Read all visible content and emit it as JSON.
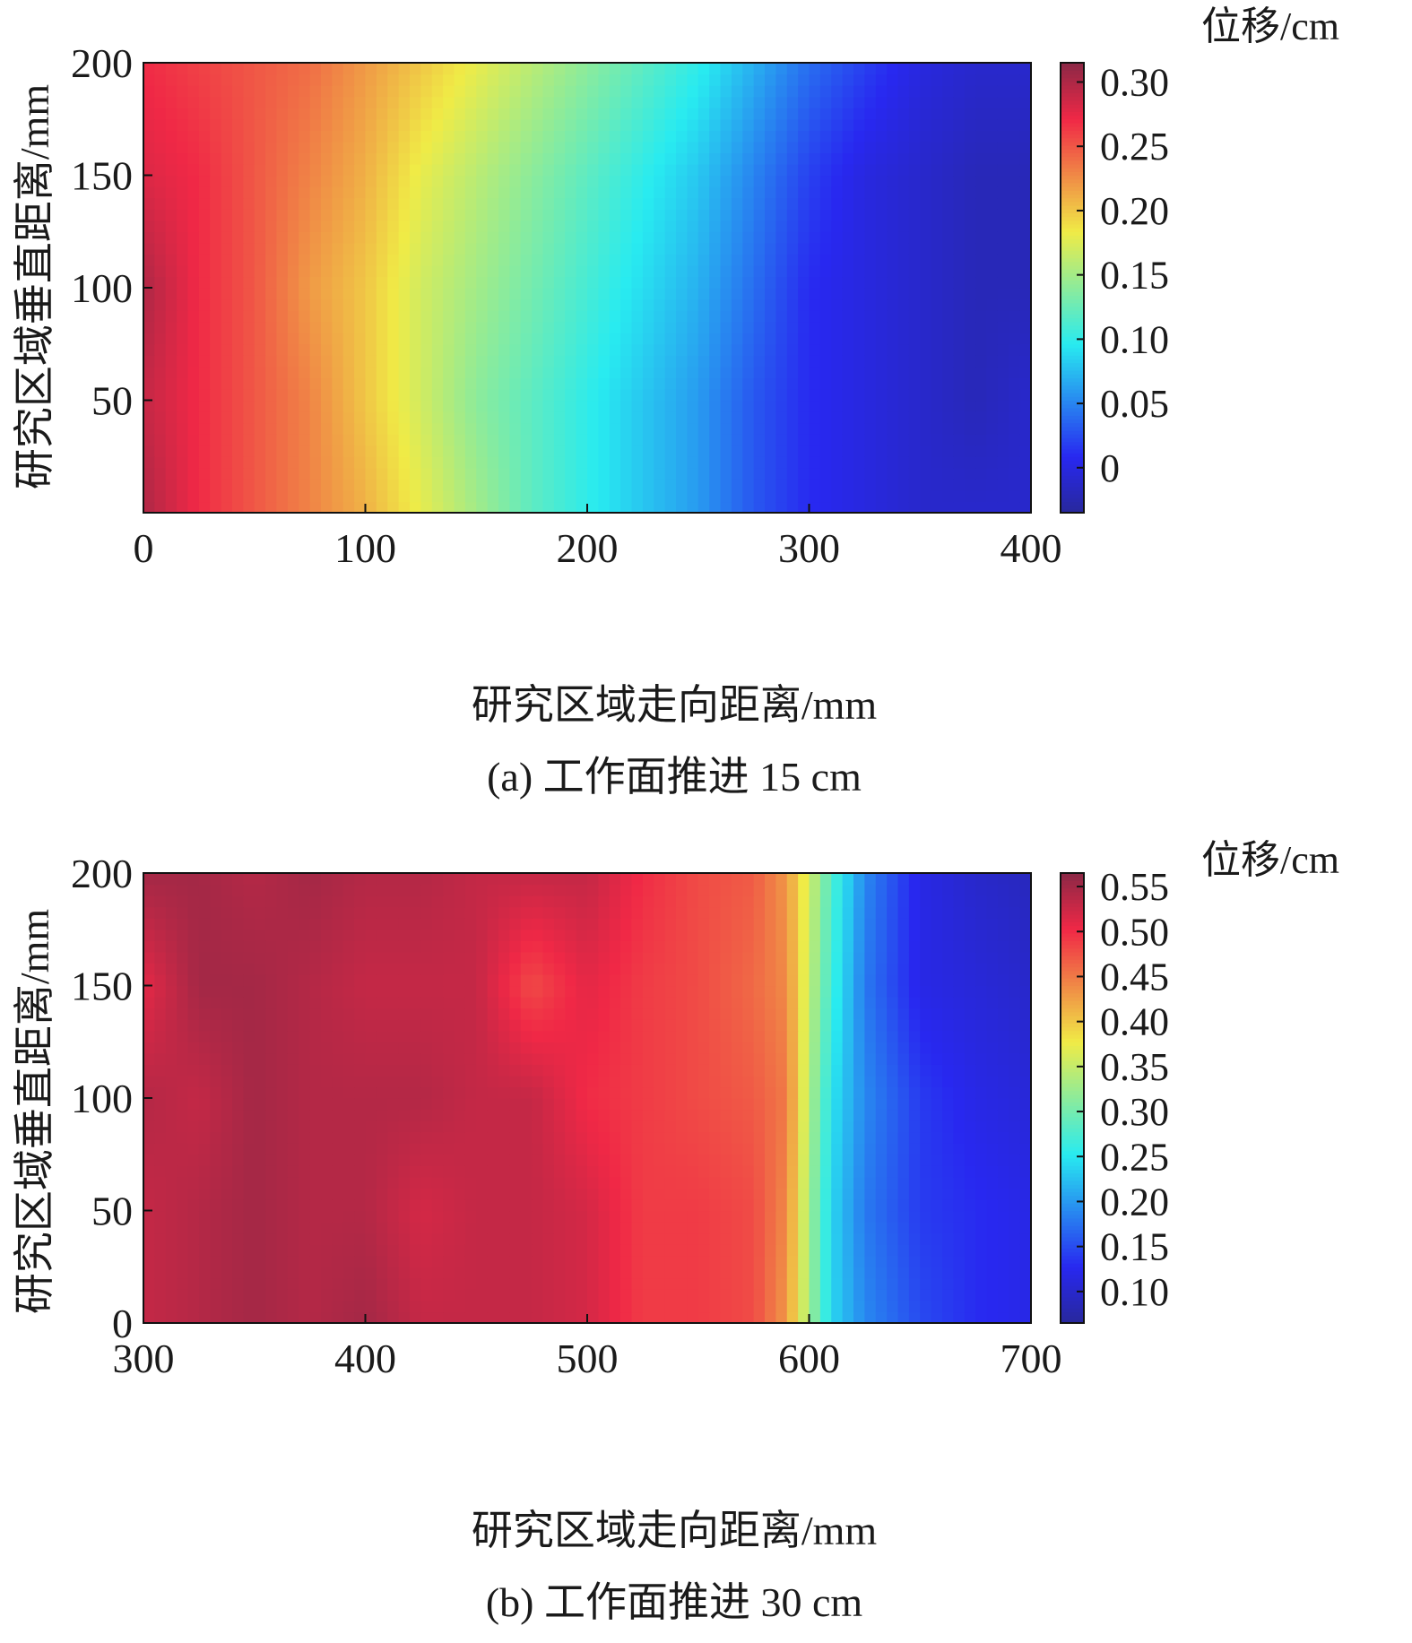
{
  "chart_data": [
    {
      "type": "heatmap",
      "caption": "(a) 工作面推进 15 cm",
      "xlabel": "研究区域走向距离/mm",
      "ylabel": "研究区域垂直距离/mm",
      "x_ticks": [
        "0",
        "100",
        "200",
        "300",
        "400"
      ],
      "y_ticks": [
        "50",
        "100",
        "150",
        "200"
      ],
      "xlim": [
        0,
        400
      ],
      "ylim": [
        0,
        200
      ],
      "colorbar": {
        "title": "位移/cm",
        "ticks": [
          "0",
          "0.05",
          "0.10",
          "0.15",
          "0.20",
          "0.25",
          "0.30"
        ],
        "tick_values": [
          0,
          0.05,
          0.1,
          0.15,
          0.2,
          0.25,
          0.3
        ],
        "range": [
          -0.035,
          0.315
        ]
      },
      "colormap": "jet",
      "x": [
        0,
        25,
        50,
        75,
        100,
        125,
        150,
        175,
        200,
        225,
        250,
        275,
        300,
        325,
        350,
        375,
        400
      ],
      "y": [
        0,
        50,
        100,
        150,
        200
      ],
      "z": [
        [
          0.3,
          0.27,
          0.25,
          0.23,
          0.21,
          0.18,
          0.15,
          0.12,
          0.1,
          0.08,
          0.06,
          0.03,
          0.01,
          0.0,
          -0.01,
          -0.01,
          -0.01
        ],
        [
          0.29,
          0.27,
          0.25,
          0.23,
          0.2,
          0.17,
          0.14,
          0.12,
          0.1,
          0.08,
          0.06,
          0.03,
          0.01,
          0.0,
          -0.01,
          -0.02,
          -0.01
        ],
        [
          0.3,
          0.27,
          0.25,
          0.22,
          0.2,
          0.17,
          0.15,
          0.13,
          0.11,
          0.09,
          0.07,
          0.04,
          0.01,
          0.0,
          -0.01,
          -0.02,
          -0.02
        ],
        [
          0.28,
          0.27,
          0.25,
          0.23,
          0.21,
          0.18,
          0.16,
          0.14,
          0.12,
          0.1,
          0.08,
          0.05,
          0.02,
          0.0,
          -0.01,
          -0.02,
          -0.02
        ],
        [
          0.27,
          0.26,
          0.25,
          0.24,
          0.22,
          0.2,
          0.18,
          0.16,
          0.14,
          0.12,
          0.1,
          0.07,
          0.04,
          0.02,
          0.0,
          -0.01,
          -0.01
        ]
      ]
    },
    {
      "type": "heatmap",
      "caption": "(b) 工作面推进 30 cm",
      "xlabel": "研究区域走向距离/mm",
      "ylabel": "研究区域垂直距离/mm",
      "x_ticks": [
        "300",
        "400",
        "500",
        "600",
        "700"
      ],
      "y_ticks": [
        "0",
        "50",
        "100",
        "150",
        "200"
      ],
      "xlim": [
        300,
        700
      ],
      "ylim": [
        0,
        200
      ],
      "colorbar": {
        "title": "位移/cm",
        "ticks": [
          "0.10",
          "0.15",
          "0.20",
          "0.25",
          "0.30",
          "0.35",
          "0.40",
          "0.45",
          "0.50",
          "0.55"
        ],
        "tick_values": [
          0.1,
          0.15,
          0.2,
          0.25,
          0.3,
          0.35,
          0.4,
          0.45,
          0.5,
          0.55
        ],
        "range": [
          0.065,
          0.565
        ]
      },
      "colormap": "jet",
      "x": [
        300,
        325,
        350,
        375,
        400,
        425,
        450,
        475,
        500,
        525,
        550,
        575,
        590,
        600,
        610,
        625,
        650,
        675,
        700
      ],
      "y": [
        0,
        50,
        100,
        150,
        200
      ],
      "z": [
        [
          0.53,
          0.54,
          0.55,
          0.54,
          0.55,
          0.53,
          0.53,
          0.53,
          0.52,
          0.49,
          0.49,
          0.48,
          0.43,
          0.33,
          0.24,
          0.19,
          0.15,
          0.13,
          0.12
        ],
        [
          0.53,
          0.54,
          0.55,
          0.54,
          0.54,
          0.52,
          0.53,
          0.53,
          0.52,
          0.49,
          0.49,
          0.48,
          0.44,
          0.33,
          0.24,
          0.18,
          0.14,
          0.13,
          0.12
        ],
        [
          0.54,
          0.53,
          0.55,
          0.54,
          0.54,
          0.54,
          0.53,
          0.53,
          0.5,
          0.49,
          0.48,
          0.47,
          0.45,
          0.34,
          0.25,
          0.19,
          0.14,
          0.12,
          0.11
        ],
        [
          0.51,
          0.55,
          0.55,
          0.54,
          0.53,
          0.53,
          0.53,
          0.48,
          0.51,
          0.49,
          0.48,
          0.46,
          0.44,
          0.35,
          0.27,
          0.18,
          0.12,
          0.11,
          0.1
        ],
        [
          0.55,
          0.55,
          0.54,
          0.55,
          0.54,
          0.54,
          0.53,
          0.53,
          0.53,
          0.5,
          0.48,
          0.47,
          0.43,
          0.36,
          0.28,
          0.19,
          0.12,
          0.1,
          0.09
        ]
      ]
    }
  ]
}
